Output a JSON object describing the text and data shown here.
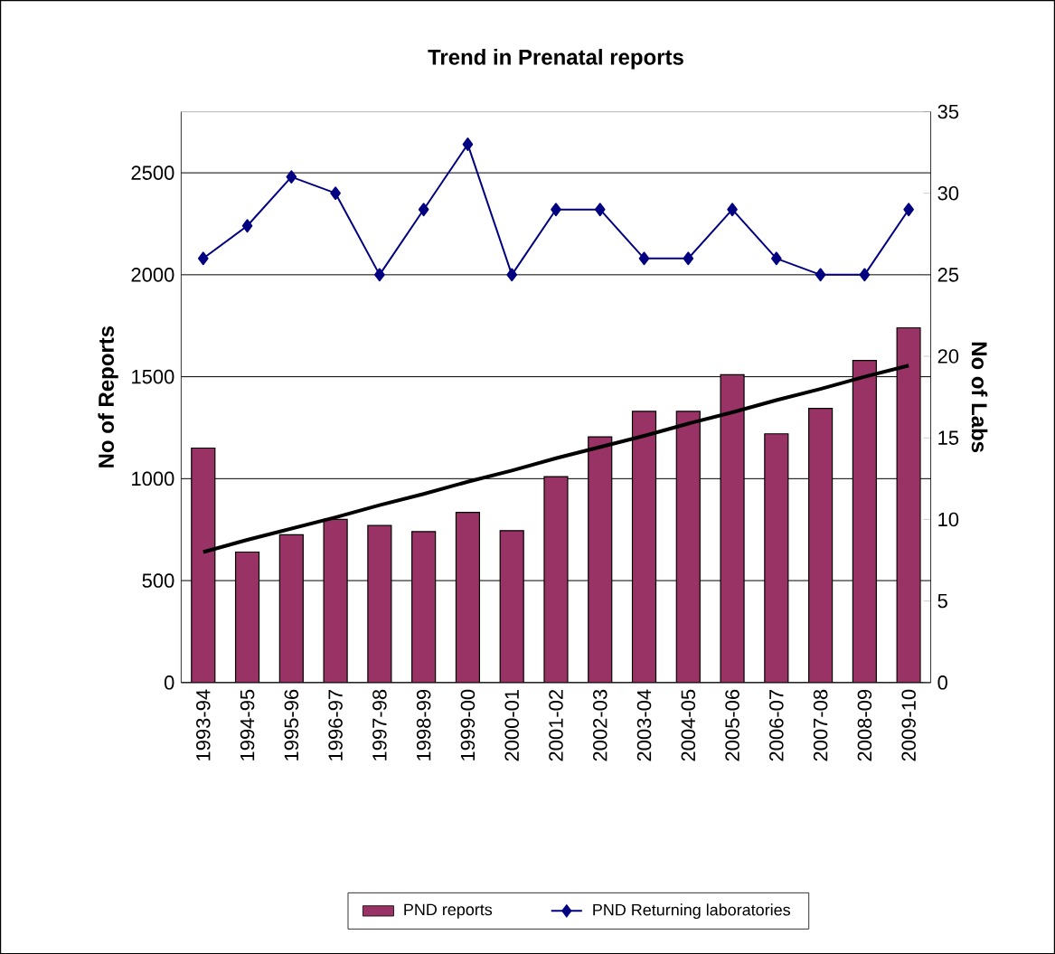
{
  "chart_data": {
    "type": "bar",
    "title": "Trend in Prenatal reports",
    "ylabel": "No of Reports",
    "y2label": "No of Labs",
    "categories": [
      "1993-94",
      "1994-95",
      "1995-96",
      "1996-97",
      "1997-98",
      "1998-99",
      "1999-00",
      "2000-01",
      "2001-02",
      "2002-03",
      "2003-04",
      "2004-05",
      "2005-06",
      "2006-07",
      "2007-08",
      "2008-09",
      "2009-10"
    ],
    "series": [
      {
        "name": "PND reports",
        "color": "#993366",
        "values": [
          1150,
          640,
          725,
          800,
          770,
          740,
          835,
          745,
          1010,
          1205,
          1330,
          1330,
          1510,
          1220,
          1345,
          1580,
          1740
        ]
      },
      {
        "name": "PND Returning laboratories",
        "type": "line",
        "axis": "y2",
        "color": "#000080",
        "marker": "diamond",
        "values": [
          26,
          28,
          31,
          30,
          25,
          29,
          33,
          25,
          29,
          29,
          26,
          26,
          29,
          26,
          25,
          25,
          29
        ]
      },
      {
        "type": "line",
        "color": "#000000",
        "marker": "none",
        "values": [
          640,
          700,
          755,
          810,
          870,
          925,
          985,
          1040,
          1100,
          1155,
          1210,
          1270,
          1325,
          1385,
          1440,
          1500,
          1555
        ]
      }
    ],
    "ylim": [
      0,
      2800
    ],
    "yticks": [
      0,
      500,
      1000,
      1500,
      2000,
      2500
    ],
    "y2lim": [
      0,
      35
    ],
    "y2ticks": [
      0,
      5,
      10,
      15,
      20,
      25,
      30,
      35
    ],
    "grid": "y",
    "legend": "bottom"
  }
}
